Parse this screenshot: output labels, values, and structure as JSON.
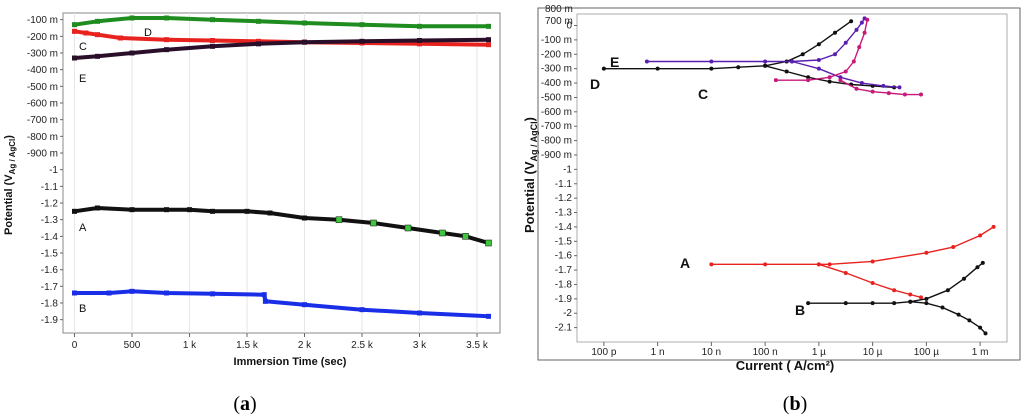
{
  "chart_data": [
    {
      "panel_label": "a",
      "type": "line",
      "xlabel": "Immersion Time (sec)",
      "ylabel": "Potential (V",
      "ylabel_sub": "Ag / AgCl",
      "ylabel_close": ")",
      "xlim": [
        -100,
        3700
      ],
      "ylim": [
        -1.98,
        -0.06
      ],
      "x_ticks": [
        0,
        500,
        1000,
        1500,
        2000,
        2500,
        3000,
        3500
      ],
      "x_tick_labels": [
        "0",
        "500",
        "1 k",
        "1.5 k",
        "2 k",
        "2.5 k",
        "3 k",
        "3.5 k"
      ],
      "y_ticks": [
        -0.1,
        -0.2,
        -0.3,
        -0.4,
        -0.5,
        -0.6,
        -0.7,
        -0.8,
        -0.9,
        -1.0,
        -1.1,
        -1.2,
        -1.3,
        -1.4,
        -1.5,
        -1.6,
        -1.7,
        -1.8,
        -1.9
      ],
      "y_tick_labels": [
        "-100 m",
        "-200 m",
        "-300 m",
        "-400 m",
        "-500 m",
        "-600 m",
        "-700 m",
        "-800 m",
        "-900 m",
        "-1",
        "-1.1",
        "-1.2",
        "-1.3",
        "-1.4",
        "-1.5",
        "-1.6",
        "-1.7",
        "-1.8",
        "-1.9"
      ],
      "series": [
        {
          "name": "D",
          "color": "#1e8c1e",
          "x": [
            0,
            200,
            500,
            800,
            1200,
            1600,
            2000,
            2500,
            3000,
            3600
          ],
          "y": [
            -0.13,
            -0.11,
            -0.09,
            -0.09,
            -0.1,
            -0.11,
            -0.12,
            -0.13,
            -0.14,
            -0.14
          ]
        },
        {
          "name": "C",
          "color": "#e8231f",
          "x": [
            0,
            100,
            200,
            400,
            800,
            1200,
            1600,
            2000,
            2500,
            3000,
            3600
          ],
          "y": [
            -0.17,
            -0.18,
            -0.19,
            -0.21,
            -0.22,
            -0.225,
            -0.23,
            -0.235,
            -0.24,
            -0.245,
            -0.25
          ]
        },
        {
          "name": "E",
          "color": "#2a0f2a",
          "x": [
            0,
            200,
            500,
            800,
            1200,
            1600,
            2000,
            2500,
            3000,
            3600
          ],
          "y": [
            -0.33,
            -0.32,
            -0.3,
            -0.28,
            -0.26,
            -0.245,
            -0.235,
            -0.23,
            -0.225,
            -0.22
          ]
        },
        {
          "name": "A",
          "color": "#111111",
          "x": [
            0,
            200,
            500,
            800,
            1000,
            1200,
            1500,
            1700,
            2000,
            2300,
            2600,
            2900,
            3200,
            3400,
            3600
          ],
          "y": [
            -1.25,
            -1.23,
            -1.24,
            -1.24,
            -1.24,
            -1.25,
            -1.25,
            -1.26,
            -1.29,
            -1.3,
            -1.32,
            -1.35,
            -1.38,
            -1.4,
            -1.44
          ]
        },
        {
          "name": "B",
          "color": "#1a2ee8",
          "x": [
            0,
            300,
            500,
            800,
            1200,
            1650,
            1660,
            2000,
            2500,
            3000,
            3600
          ],
          "y": [
            -1.74,
            -1.74,
            -1.73,
            -1.74,
            -1.745,
            -1.75,
            -1.79,
            -1.81,
            -1.84,
            -1.86,
            -1.88
          ]
        }
      ],
      "annotations": [
        "D",
        "C",
        "E",
        "A",
        "B"
      ]
    },
    {
      "panel_label": "b",
      "type": "line",
      "xlabel": "Current ( A/cm²)",
      "ylabel": "Potential (V",
      "ylabel_sub": "Ag / AgCl",
      "ylabel_close": ")",
      "x_scale": "log10",
      "xlim": [
        -10.5,
        -2.5
      ],
      "ylim": [
        -2.2,
        0.08
      ],
      "x_ticks": [
        -10,
        -9,
        -8,
        -7,
        -6,
        -5,
        -4,
        -3
      ],
      "x_tick_labels": [
        "100 p",
        "1 n",
        "10 n",
        "100 n",
        "1 µ",
        "10 µ",
        "100 µ",
        "1 m"
      ],
      "y_ticks": [
        0,
        -0.1,
        -0.2,
        -0.3,
        -0.4,
        -0.5,
        -0.6,
        -0.7,
        -0.8,
        -0.9,
        -1.0,
        -1.1,
        -1.2,
        -1.3,
        -1.4,
        -1.5,
        -1.6,
        -1.7,
        -1.8,
        -1.9,
        -2.0,
        -2.1
      ],
      "y_tick_labels": [
        "0",
        "-100 m",
        "-200 m",
        "-300 m",
        "-400 m",
        "-500 m",
        "-600 m",
        "-700 m",
        "-800 m",
        "-900 m",
        "-1",
        "-1.1",
        "-1.2",
        "-1.3",
        "-1.4",
        "-1.5",
        "-1.6",
        "-1.7",
        "-1.8",
        "-1.9",
        "-2",
        "-2.1"
      ],
      "top_tick_labels": [
        "800 m",
        "700 m"
      ],
      "series": [
        {
          "name": "D",
          "color": "#111111",
          "segments": [
            {
              "x": [
                -10.0,
                -9.0,
                -8.0,
                -7.5,
                -7.0,
                -6.6,
                -6.3,
                -6.0,
                -5.7,
                -5.4
              ],
              "y": [
                -0.3,
                -0.3,
                -0.3,
                -0.29,
                -0.28,
                -0.25,
                -0.2,
                -0.13,
                -0.05,
                0.03
              ]
            },
            {
              "x": [
                -7.0,
                -6.6,
                -6.2,
                -5.8,
                -5.4,
                -5.0,
                -4.6
              ],
              "y": [
                -0.28,
                -0.32,
                -0.36,
                -0.39,
                -0.41,
                -0.42,
                -0.43
              ]
            }
          ]
        },
        {
          "name": "E",
          "color": "#5a1fb0",
          "segments": [
            {
              "x": [
                -9.2,
                -8.0,
                -7.0,
                -6.5,
                -6.0,
                -5.7,
                -5.5,
                -5.3,
                -5.2,
                -5.15
              ],
              "y": [
                -0.25,
                -0.25,
                -0.25,
                -0.25,
                -0.24,
                -0.2,
                -0.12,
                -0.03,
                0.02,
                0.05
              ]
            },
            {
              "x": [
                -6.5,
                -6.0,
                -5.6,
                -5.2,
                -4.8,
                -4.5
              ],
              "y": [
                -0.25,
                -0.3,
                -0.36,
                -0.4,
                -0.42,
                -0.43
              ]
            }
          ]
        },
        {
          "name": "C",
          "color": "#c8187a",
          "segments": [
            {
              "x": [
                -6.8,
                -6.2,
                -5.8,
                -5.5,
                -5.35,
                -5.25,
                -5.15,
                -5.1
              ],
              "y": [
                -0.38,
                -0.38,
                -0.36,
                -0.32,
                -0.25,
                -0.15,
                -0.05,
                0.04
              ]
            },
            {
              "x": [
                -5.6,
                -5.3,
                -5.0,
                -4.7,
                -4.4,
                -4.1
              ],
              "y": [
                -0.38,
                -0.44,
                -0.46,
                -0.47,
                -0.48,
                -0.48
              ]
            }
          ]
        },
        {
          "name": "A",
          "color": "#e8231f",
          "segments": [
            {
              "x": [
                -8.0,
                -7.0,
                -6.0,
                -5.8,
                -5.0,
                -4.0,
                -3.5,
                -3.0,
                -2.75
              ],
              "y": [
                -1.66,
                -1.66,
                -1.66,
                -1.66,
                -1.64,
                -1.58,
                -1.54,
                -1.46,
                -1.4
              ]
            },
            {
              "x": [
                -6.0,
                -5.5,
                -5.0,
                -4.6,
                -4.3,
                -4.1
              ],
              "y": [
                -1.66,
                -1.72,
                -1.79,
                -1.84,
                -1.87,
                -1.89
              ]
            }
          ]
        },
        {
          "name": "B",
          "color": "#111111",
          "segments": [
            {
              "x": [
                -6.2,
                -5.5,
                -5.0,
                -4.6,
                -4.3,
                -4.0,
                -3.6,
                -3.3,
                -3.05,
                -2.95
              ],
              "y": [
                -1.93,
                -1.93,
                -1.93,
                -1.93,
                -1.92,
                -1.9,
                -1.84,
                -1.76,
                -1.68,
                -1.65
              ]
            },
            {
              "x": [
                -4.3,
                -4.0,
                -3.7,
                -3.4,
                -3.2,
                -3.0,
                -2.9
              ],
              "y": [
                -1.92,
                -1.93,
                -1.96,
                -2.01,
                -2.05,
                -2.1,
                -2.14
              ]
            }
          ]
        }
      ],
      "annotations": [
        "E",
        "D",
        "C",
        "A",
        "B"
      ]
    }
  ]
}
